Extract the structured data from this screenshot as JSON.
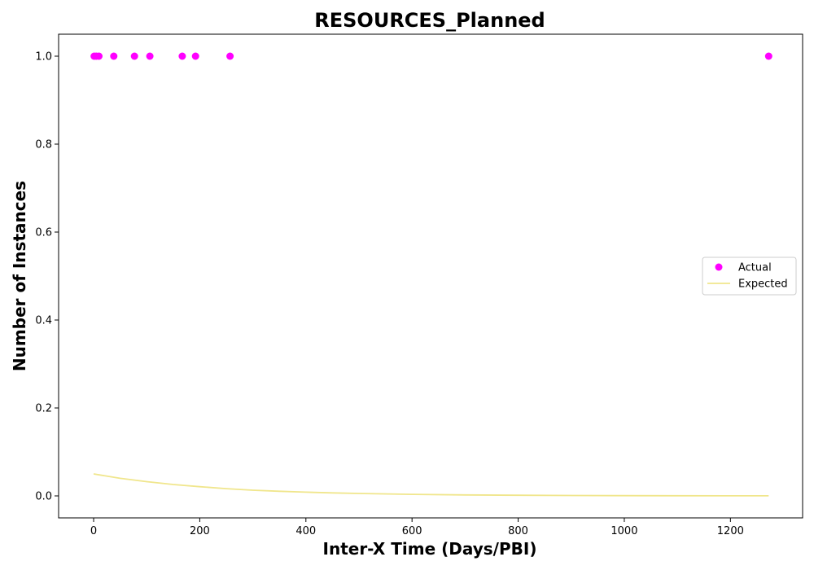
{
  "chart_data": {
    "type": "scatter",
    "title": "RESOURCES_Planned",
    "xlabel": "Inter-X Time (Days/PBI)",
    "ylabel": "Number of Instances",
    "xlim": [
      -66,
      1336
    ],
    "ylim": [
      -0.05,
      1.05
    ],
    "xticks": [
      "0",
      "200",
      "400",
      "600",
      "800",
      "1000",
      "1200"
    ],
    "yticks": [
      "0.0",
      "0.2",
      "0.4",
      "0.6",
      "0.8",
      "1.0"
    ],
    "grid": false,
    "legend_position": "center-right",
    "series": [
      {
        "name": "Actual",
        "kind": "scatter",
        "color": "#ff00ff",
        "x": [
          1,
          5,
          10,
          38,
          77,
          106,
          167,
          192,
          257,
          1272
        ],
        "y": [
          1,
          1,
          1,
          1,
          1,
          1,
          1,
          1,
          1,
          1
        ]
      },
      {
        "name": "Expected",
        "kind": "line",
        "color": "#f0e68c",
        "x": [
          0,
          50,
          100,
          150,
          200,
          250,
          300,
          350,
          400,
          450,
          500,
          600,
          700,
          800,
          900,
          1000,
          1100,
          1200,
          1272
        ],
        "y": [
          0.05,
          0.04,
          0.0325,
          0.026,
          0.021,
          0.0165,
          0.013,
          0.0105,
          0.0085,
          0.0068,
          0.0055,
          0.0035,
          0.0022,
          0.0014,
          0.0009,
          0.0006,
          0.0004,
          0.0002,
          0.0001
        ]
      }
    ]
  }
}
